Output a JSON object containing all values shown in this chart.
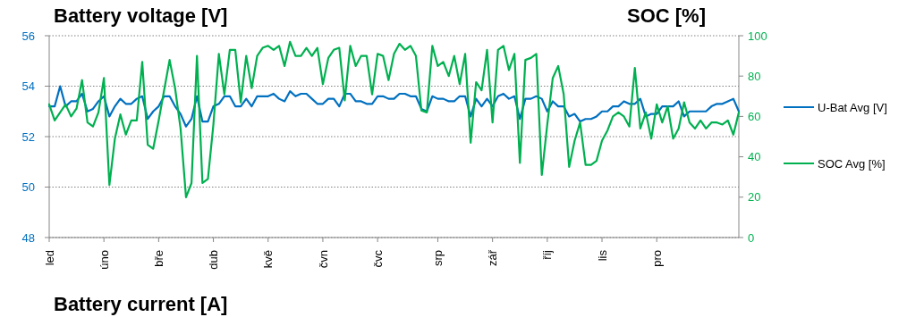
{
  "chart_data": {
    "type": "line",
    "title": "Battery voltage [V]",
    "y2label": "SOC [%]",
    "annotations": [
      "Battery current [A]"
    ],
    "categories": [
      "led",
      null,
      null,
      null,
      null,
      null,
      null,
      null,
      null,
      null,
      "úno",
      null,
      null,
      null,
      null,
      null,
      null,
      null,
      null,
      null,
      "bře",
      null,
      null,
      null,
      null,
      null,
      null,
      null,
      null,
      null,
      "dub",
      null,
      null,
      null,
      null,
      null,
      null,
      null,
      null,
      null,
      "kvě",
      null,
      null,
      null,
      null,
      null,
      null,
      null,
      null,
      null,
      "čvn",
      null,
      null,
      null,
      null,
      null,
      null,
      null,
      null,
      null,
      "čvc",
      null,
      null,
      null,
      null,
      null,
      null,
      null,
      null,
      null,
      null,
      "srp",
      null,
      null,
      null,
      null,
      null,
      null,
      null,
      null,
      null,
      "zář",
      null,
      null,
      null,
      null,
      null,
      null,
      null,
      null,
      null,
      "říj",
      null,
      null,
      null,
      null,
      null,
      null,
      null,
      null,
      null,
      "lis",
      null,
      null,
      null,
      null,
      null,
      null,
      null,
      null,
      null,
      "pro",
      null,
      null,
      null,
      null,
      null,
      null,
      null,
      null,
      null,
      null,
      null,
      null,
      null,
      null,
      null
    ],
    "ylim": [
      48,
      56
    ],
    "yticks": [
      48,
      50,
      52,
      54,
      56
    ],
    "y2lim": [
      0,
      100
    ],
    "y2ticks": [
      0,
      20,
      40,
      60,
      80,
      100
    ],
    "grid": "y",
    "legend": "right",
    "series": [
      {
        "name": "U-Bat Avg [V]",
        "color": "#0070c0",
        "values": [
          53.2,
          53.2,
          54.0,
          53.2,
          53.4,
          53.4,
          53.7,
          53.0,
          53.1,
          53.4,
          53.6,
          52.8,
          53.2,
          53.5,
          53.3,
          53.3,
          53.5,
          53.6,
          52.7,
          53.0,
          53.2,
          53.6,
          53.6,
          53.2,
          52.9,
          52.4,
          52.7,
          53.6,
          52.6,
          52.6,
          53.2,
          53.3,
          53.6,
          53.6,
          53.2,
          53.2,
          53.5,
          53.2,
          53.6,
          53.6,
          53.6,
          53.7,
          53.5,
          53.4,
          53.8,
          53.6,
          53.7,
          53.7,
          53.5,
          53.3,
          53.3,
          53.5,
          53.5,
          53.2,
          53.7,
          53.7,
          53.4,
          53.4,
          53.3,
          53.3,
          53.6,
          53.6,
          53.5,
          53.5,
          53.7,
          53.7,
          53.6,
          53.6,
          53.1,
          53.0,
          53.6,
          53.5,
          53.5,
          53.4,
          53.4,
          53.6,
          53.6,
          52.8,
          53.5,
          53.2,
          53.5,
          53.2,
          53.6,
          53.7,
          53.5,
          53.6,
          52.7,
          53.5,
          53.5,
          53.6,
          53.5,
          53.0,
          53.4,
          53.2,
          53.2,
          52.8,
          52.9,
          52.6,
          52.7,
          52.7,
          52.8,
          53.0,
          53.0,
          53.2,
          53.2,
          53.4,
          53.3,
          53.3,
          53.5,
          52.8,
          52.9,
          52.9,
          53.2,
          53.2,
          53.2,
          53.4,
          52.8,
          53.0,
          53.0,
          53.0,
          53.0,
          53.2,
          53.3,
          53.3,
          53.4,
          53.5,
          53.0
        ]
      },
      {
        "name": "SOC Avg [%]",
        "color": "#00b050",
        "axis": "y2",
        "values": [
          66,
          58,
          62,
          66,
          60,
          64,
          78,
          57,
          55,
          62,
          79,
          26,
          49,
          61,
          51,
          58,
          58,
          87,
          46,
          44,
          58,
          73,
          88,
          74,
          54,
          20,
          27,
          90,
          27,
          29,
          56,
          91,
          71,
          93,
          93,
          67,
          90,
          74,
          90,
          94,
          95,
          93,
          95,
          85,
          97,
          90,
          90,
          94,
          90,
          94,
          76,
          89,
          93,
          94,
          68,
          95,
          85,
          90,
          90,
          71,
          91,
          90,
          78,
          91,
          96,
          93,
          95,
          90,
          63,
          62,
          95,
          85,
          87,
          80,
          90,
          76,
          91,
          47,
          77,
          73,
          93,
          57,
          93,
          95,
          83,
          91,
          37,
          88,
          89,
          91,
          31,
          56,
          79,
          85,
          71,
          35,
          48,
          57,
          36,
          36,
          38,
          48,
          53,
          60,
          62,
          60,
          55,
          84,
          54,
          62,
          49,
          66,
          57,
          65,
          49,
          54,
          67,
          57,
          54,
          58,
          54,
          57,
          57,
          56,
          58,
          51,
          62
        ]
      }
    ]
  }
}
